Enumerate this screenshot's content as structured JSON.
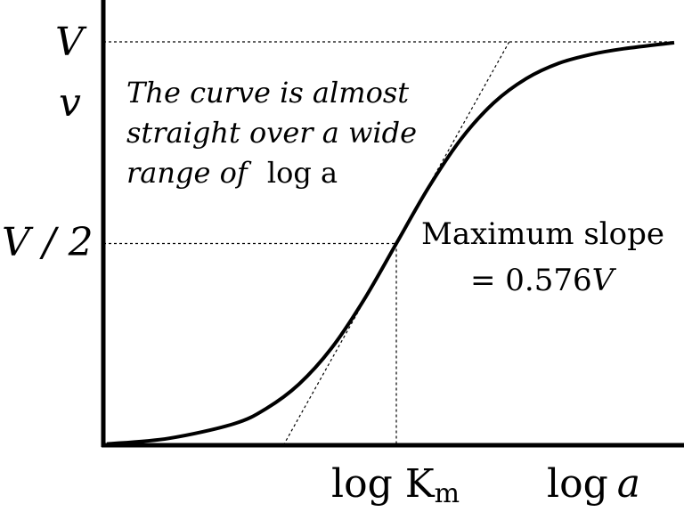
{
  "chart_data": {
    "type": "line",
    "title": "",
    "xlabel": "log a",
    "ylabel": "v",
    "x_scale": "logarithmic (log a)",
    "grid": false,
    "y_ticks": [
      {
        "label": "V",
        "value": 1.0
      },
      {
        "label": "V / 2",
        "value": 0.5
      }
    ],
    "x_ticks": [
      {
        "label_main": "log K",
        "label_sub": "m",
        "value": 0.0
      }
    ],
    "series": [
      {
        "name": "",
        "description": "sigmoid saturation curve v = V / (1 + Km/a) plotted against log a",
        "x": [
          -1.75,
          -1.25,
          -1.0,
          -0.75,
          -0.5,
          -0.25,
          0.0,
          0.25,
          0.5,
          0.75,
          1.0,
          1.25,
          1.5,
          1.75
        ],
        "y": [
          0.017,
          0.053,
          0.091,
          0.151,
          0.24,
          0.36,
          0.5,
          0.64,
          0.76,
          0.849,
          0.909,
          0.947,
          0.969,
          0.983
        ]
      }
    ],
    "tangent": {
      "at_x": 0.0,
      "slope_per_unit_log": 0.576
    },
    "annotations": {
      "curve_note_lines": [
        "The curve is almost",
        "straight over a wide",
        "range of"
      ],
      "curve_note_math": "log a",
      "slope_line1": "Maximum slope",
      "slope_line2_prefix": "= 0.576",
      "slope_line2_var": "V"
    },
    "axis_title_x_main": "log",
    "axis_title_x_var": "a"
  }
}
